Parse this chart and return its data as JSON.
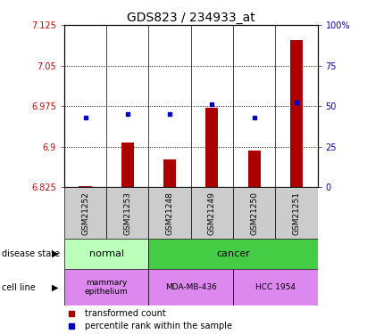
{
  "title": "GDS823 / 234933_at",
  "samples": [
    "GSM21252",
    "GSM21253",
    "GSM21248",
    "GSM21249",
    "GSM21250",
    "GSM21251"
  ],
  "bar_values": [
    6.827,
    6.908,
    6.876,
    6.972,
    6.892,
    7.097
  ],
  "percentile_values": [
    43,
    45,
    45,
    51,
    43,
    52
  ],
  "ylim_left": [
    6.825,
    7.125
  ],
  "ylim_right": [
    0,
    100
  ],
  "yticks_left": [
    6.825,
    6.9,
    6.975,
    7.05,
    7.125
  ],
  "yticks_right": [
    0,
    25,
    50,
    75,
    100
  ],
  "ytick_labels_left": [
    "6.825",
    "6.9",
    "6.975",
    "7.05",
    "7.125"
  ],
  "ytick_labels_right": [
    "0",
    "25",
    "50",
    "75",
    "100%"
  ],
  "bar_color": "#aa0000",
  "dot_color": "#0000cc",
  "bar_base": 6.825,
  "normal_color": "#bbffbb",
  "cancer_color": "#44cc44",
  "cell_color": "#dd88ee",
  "sample_color": "#cccccc",
  "title_fontsize": 10,
  "tick_fontsize": 7,
  "label_fontsize": 7.5
}
